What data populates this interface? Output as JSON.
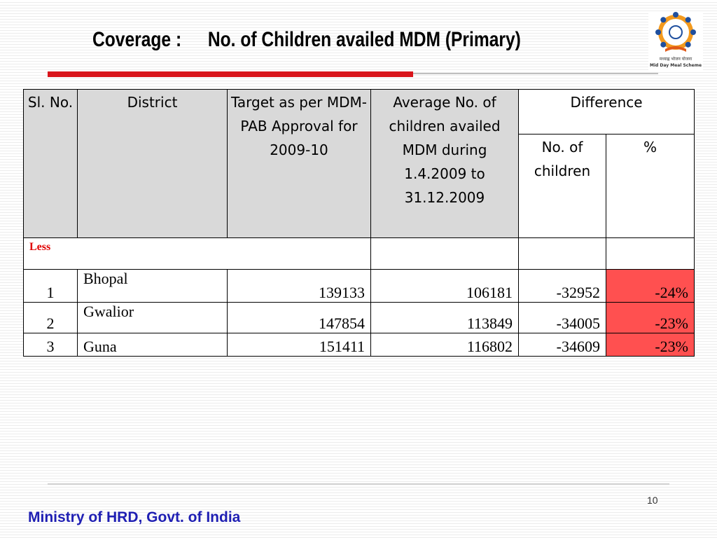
{
  "header": {
    "title_label": "Coverage :",
    "title_text": "No. of Children availed MDM (Primary)",
    "logo_caption_1": "मध्याह्न भोजन योजना",
    "logo_caption_2": "Mid Day Meal Scheme"
  },
  "table": {
    "headers": {
      "sl": "Sl. No.",
      "district": "District",
      "target": "Target as per MDM-PAB Approval for 2009-10",
      "average": "Average No. of children availed MDM during 1.4.2009 to 31.12.2009",
      "difference": "Difference",
      "diff_children": "No. of children",
      "diff_pct": "%"
    },
    "less_label": "Less",
    "rows": [
      {
        "sl": "1",
        "district": "Bhopal",
        "target": "139133",
        "average": "106181",
        "diff": "-32952",
        "pct": "-24%"
      },
      {
        "sl": "2",
        "district": "Gwalior",
        "target": "147854",
        "average": "113849",
        "diff": "-34005",
        "pct": "-23%"
      },
      {
        "sl": "3",
        "district": "Guna",
        "target": "151411",
        "average": "116802",
        "diff": "-34609",
        "pct": "-23%"
      }
    ],
    "highlight_color": "#ff5050"
  },
  "footer": {
    "page_number": "10",
    "ministry": "Ministry of HRD, Govt. of India"
  },
  "colors": {
    "accent_bar": "#d9151b",
    "footer_text": "#1f1fb3",
    "less_text": "#e00000"
  }
}
